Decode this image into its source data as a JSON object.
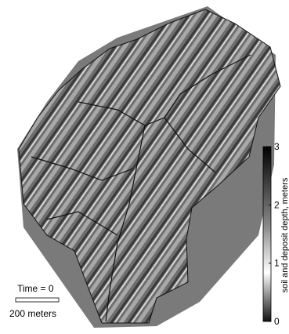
{
  "colorbar": {
    "label": "soil and deposit depth, meters",
    "lim": [
      0,
      3
    ],
    "ticks": [
      0,
      1,
      2,
      3
    ]
  },
  "annotations": {
    "time": "Time = 0",
    "scale": "200 meters"
  }
}
